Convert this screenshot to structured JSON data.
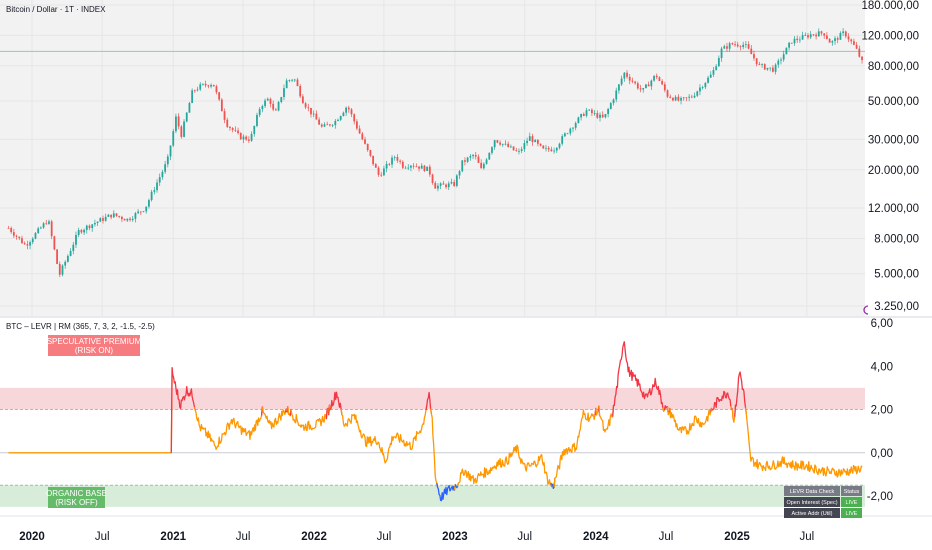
{
  "header": {
    "symbol_title": "Bitcoin / Dollar · 1T · INDEX",
    "indicator_title": "BTC – LEVR | RM (365, 7, 3, 2, -1.5, -2.5)"
  },
  "zones": {
    "speculative_line1": "SPECULATIVE PREMIUM",
    "speculative_line2": "(RISK ON)",
    "organic_line1": "ORGANIC BASE",
    "organic_line2": "(RISK OFF)"
  },
  "status_table": {
    "headers": [
      "LEVR Data Check",
      "Status"
    ],
    "rows": [
      [
        "Open Interest (Spec)",
        "LIVE"
      ],
      [
        "Active Addr (Util)",
        "LIVE"
      ]
    ]
  },
  "colors": {
    "up": "#26a69a",
    "down": "#ef5350",
    "osc_neutral": "#ff9800",
    "osc_high": "#f23645",
    "osc_low": "#2962ff",
    "risk_on_band": "#f8d7da",
    "risk_off_band": "#d7ecd9",
    "risk_on_label": "#f77c80",
    "risk_off_label": "#66bb6a",
    "table_header": "#787b86",
    "table_cell": "#434651",
    "live_status": "#4caf50"
  },
  "chart_data": [
    {
      "type": "candlestick",
      "title": "Bitcoin / Dollar · 1T · INDEX",
      "y_scale": "log",
      "ylim": [
        2800,
        190000
      ],
      "y_ticks": [
        3250,
        5000,
        8000,
        12000,
        20000,
        30000,
        50000,
        80000,
        120000,
        180000
      ],
      "y_tick_labels": [
        "3.250,00",
        "5.000,00",
        "8.000,00",
        "12.000,00",
        "20.000,00",
        "30.000,00",
        "50.000,00",
        "80.000,00",
        "120.000,00",
        "180.000,00"
      ],
      "horizontal_level": 97000,
      "x_ticks": [
        "2020",
        "Jul",
        "2021",
        "Jul",
        "2022",
        "Jul",
        "2023",
        "Jul",
        "2024",
        "Jul",
        "2025",
        "Jul"
      ],
      "x_tick_dates": [
        "2020-01-01",
        "2020-07-01",
        "2021-01-01",
        "2021-07-01",
        "2022-01-01",
        "2022-07-01",
        "2023-01-01",
        "2023-07-01",
        "2024-01-01",
        "2024-07-01",
        "2025-01-01",
        "2025-07-01"
      ],
      "price_path": [
        [
          "2019-11-01",
          9200
        ],
        [
          "2019-12-15",
          7300
        ],
        [
          "2020-02-12",
          10300
        ],
        [
          "2020-03-12",
          4900
        ],
        [
          "2020-03-15",
          5100
        ],
        [
          "2020-05-01",
          8800
        ],
        [
          "2020-06-01",
          9600
        ],
        [
          "2020-07-27",
          11000
        ],
        [
          "2020-09-05",
          10300
        ],
        [
          "2020-10-20",
          12000
        ],
        [
          "2020-11-15",
          16000
        ],
        [
          "2020-12-17",
          22500
        ],
        [
          "2021-01-08",
          40000
        ],
        [
          "2021-01-22",
          32000
        ],
        [
          "2021-02-20",
          57000
        ],
        [
          "2021-03-13",
          61000
        ],
        [
          "2021-04-14",
          63500
        ],
        [
          "2021-05-19",
          37000
        ],
        [
          "2021-06-22",
          31000
        ],
        [
          "2021-07-20",
          30000
        ],
        [
          "2021-08-15",
          47000
        ],
        [
          "2021-09-07",
          52000
        ],
        [
          "2021-09-21",
          41000
        ],
        [
          "2021-10-20",
          65000
        ],
        [
          "2021-11-10",
          68000
        ],
        [
          "2021-12-05",
          49000
        ],
        [
          "2022-01-22",
          35000
        ],
        [
          "2022-02-24",
          38000
        ],
        [
          "2022-03-28",
          47000
        ],
        [
          "2022-05-12",
          28000
        ],
        [
          "2022-06-18",
          18500
        ],
        [
          "2022-07-30",
          24000
        ],
        [
          "2022-08-20",
          21000
        ],
        [
          "2022-09-10",
          21500
        ],
        [
          "2022-10-25",
          20000
        ],
        [
          "2022-11-09",
          16000
        ],
        [
          "2022-12-30",
          16500
        ],
        [
          "2023-01-20",
          22000
        ],
        [
          "2023-02-20",
          24500
        ],
        [
          "2023-03-10",
          20000
        ],
        [
          "2023-04-14",
          30000
        ],
        [
          "2023-06-15",
          25000
        ],
        [
          "2023-07-13",
          31000
        ],
        [
          "2023-08-17",
          26000
        ],
        [
          "2023-09-15",
          26500
        ],
        [
          "2023-10-25",
          34500
        ],
        [
          "2023-12-08",
          44000
        ],
        [
          "2024-01-22",
          39500
        ],
        [
          "2024-02-28",
          60000
        ],
        [
          "2024-03-14",
          73000
        ],
        [
          "2024-05-01",
          57000
        ],
        [
          "2024-06-05",
          71000
        ],
        [
          "2024-07-05",
          54000
        ],
        [
          "2024-08-05",
          50000
        ],
        [
          "2024-09-06",
          53000
        ],
        [
          "2024-10-29",
          72000
        ],
        [
          "2024-11-22",
          99000
        ],
        [
          "2024-12-17",
          107000
        ],
        [
          "2025-01-21",
          106000
        ],
        [
          "2025-02-28",
          80000
        ],
        [
          "2025-04-07",
          76000
        ],
        [
          "2025-05-22",
          111000
        ],
        [
          "2025-07-14",
          122000
        ],
        [
          "2025-08-14",
          124000
        ],
        [
          "2025-09-01",
          108000
        ],
        [
          "2025-10-06",
          125000
        ],
        [
          "2025-11-05",
          101000
        ],
        [
          "2025-11-21",
          84000
        ]
      ]
    },
    {
      "type": "line",
      "title": "BTC – LEVR | RM (365, 7, 3, 2, -1.5, -2.5)",
      "ylim": [
        -2.5,
        6
      ],
      "y_ticks": [
        -2,
        0,
        2,
        4,
        6
      ],
      "y_tick_labels": [
        "-2,00",
        "0,00",
        "2,00",
        "4,00",
        "6,00"
      ],
      "risk_on_band": [
        2,
        3
      ],
      "risk_off_band": [
        -2.5,
        -1.5
      ],
      "zero_line": 0,
      "x_ticks": [
        "2020",
        "Jul",
        "2021",
        "Jul",
        "2022",
        "Jul",
        "2023",
        "Jul",
        "2024",
        "Jul",
        "2025",
        "Jul"
      ],
      "series_path": [
        [
          "2019-11-01",
          0
        ],
        [
          "2020-12-27",
          0
        ],
        [
          "2020-12-28",
          3.9
        ],
        [
          "2021-01-05",
          3.2
        ],
        [
          "2021-01-20",
          2.2
        ],
        [
          "2021-02-05",
          2.9
        ],
        [
          "2021-02-20",
          2.7
        ],
        [
          "2021-03-10",
          1.2
        ],
        [
          "2021-04-01",
          0.8
        ],
        [
          "2021-04-20",
          0.3
        ],
        [
          "2021-05-10",
          0.8
        ],
        [
          "2021-06-01",
          1.5
        ],
        [
          "2021-07-01",
          1.0
        ],
        [
          "2021-07-20",
          0.8
        ],
        [
          "2021-08-20",
          1.9
        ],
        [
          "2021-09-10",
          1.2
        ],
        [
          "2021-10-01",
          1.6
        ],
        [
          "2021-10-20",
          2.0
        ],
        [
          "2021-11-05",
          1.8
        ],
        [
          "2021-12-01",
          1.2
        ],
        [
          "2022-01-10",
          1.3
        ],
        [
          "2022-02-01",
          1.7
        ],
        [
          "2022-03-01",
          2.8
        ],
        [
          "2022-03-20",
          1.3
        ],
        [
          "2022-04-15",
          1.7
        ],
        [
          "2022-05-15",
          0.5
        ],
        [
          "2022-06-15",
          0.6
        ],
        [
          "2022-07-05",
          -0.4
        ],
        [
          "2022-07-25",
          0.8
        ],
        [
          "2022-08-15",
          0.6
        ],
        [
          "2022-09-10",
          0.3
        ],
        [
          "2022-10-10",
          1.3
        ],
        [
          "2022-10-25",
          2.7
        ],
        [
          "2022-11-03",
          1.5
        ],
        [
          "2022-11-12",
          -1.2
        ],
        [
          "2022-11-25",
          -2.1
        ],
        [
          "2022-12-15",
          -1.7
        ],
        [
          "2023-01-05",
          -1.5
        ],
        [
          "2023-01-25",
          -0.8
        ],
        [
          "2023-02-20",
          -1.3
        ],
        [
          "2023-03-10",
          -1.0
        ],
        [
          "2023-04-01",
          -0.8
        ],
        [
          "2023-04-20",
          -0.5
        ],
        [
          "2023-05-15",
          -0.4
        ],
        [
          "2023-06-10",
          0.2
        ],
        [
          "2023-06-30",
          -0.7
        ],
        [
          "2023-07-20",
          -0.6
        ],
        [
          "2023-08-15",
          -0.2
        ],
        [
          "2023-08-28",
          -1.2
        ],
        [
          "2023-09-12",
          -1.6
        ],
        [
          "2023-09-25",
          -0.8
        ],
        [
          "2023-10-10",
          0.1
        ],
        [
          "2023-10-30",
          0.2
        ],
        [
          "2023-11-12",
          0.3
        ],
        [
          "2023-11-30",
          1.8
        ],
        [
          "2023-12-20",
          1.6
        ],
        [
          "2024-01-10",
          2.0
        ],
        [
          "2024-01-25",
          0.8
        ],
        [
          "2024-02-15",
          1.9
        ],
        [
          "2024-02-28",
          3.4
        ],
        [
          "2024-03-14",
          5.3
        ],
        [
          "2024-03-25",
          3.8
        ],
        [
          "2024-04-20",
          3.2
        ],
        [
          "2024-05-10",
          2.5
        ],
        [
          "2024-06-05",
          3.3
        ],
        [
          "2024-06-25",
          2.1
        ],
        [
          "2024-07-15",
          1.8
        ],
        [
          "2024-08-05",
          1.0
        ],
        [
          "2024-08-25",
          1.0
        ],
        [
          "2024-09-15",
          1.6
        ],
        [
          "2024-10-05",
          1.3
        ],
        [
          "2024-10-25",
          1.9
        ],
        [
          "2024-11-20",
          2.6
        ],
        [
          "2024-12-10",
          2.8
        ],
        [
          "2024-12-25",
          1.5
        ],
        [
          "2025-01-08",
          3.8
        ],
        [
          "2025-01-20",
          2.6
        ],
        [
          "2025-02-05",
          -0.3
        ],
        [
          "2025-03-01",
          -0.6
        ],
        [
          "2025-04-01",
          -0.6
        ],
        [
          "2025-05-01",
          -0.4
        ],
        [
          "2025-06-01",
          -0.6
        ],
        [
          "2025-07-01",
          -0.6
        ],
        [
          "2025-08-01",
          -0.8
        ],
        [
          "2025-09-01",
          -0.9
        ],
        [
          "2025-10-01",
          -0.9
        ],
        [
          "2025-11-01",
          -0.8
        ],
        [
          "2025-11-21",
          -0.7
        ]
      ]
    }
  ]
}
